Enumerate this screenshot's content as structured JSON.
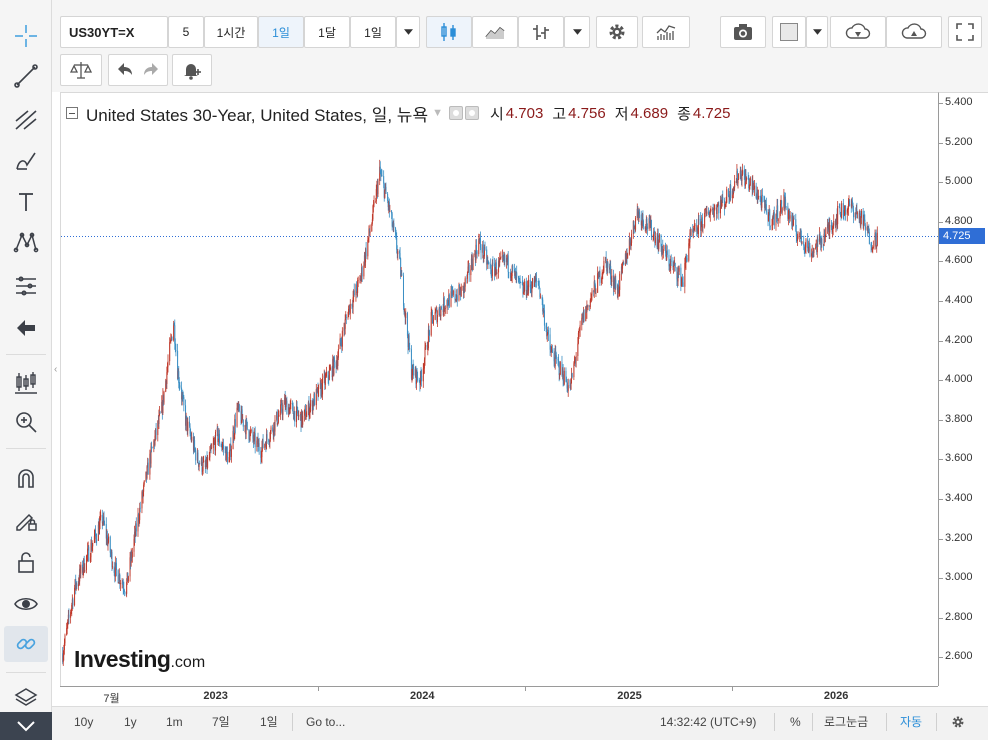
{
  "toolbar": {
    "symbol": "US30YT=X",
    "intervals": [
      "5",
      "1시간",
      "1일",
      "1달",
      "1일"
    ],
    "active_interval": "1일"
  },
  "legend": {
    "title": "United States 30-Year, United States, 일, 뉴욕",
    "open_label": "시",
    "open": "4.703",
    "high_label": "고",
    "high": "4.756",
    "low_label": "저",
    "low": "4.689",
    "close_label": "종",
    "close": "4.725"
  },
  "current_price": "4.725",
  "watermark": {
    "brand": "Investing",
    "suffix": ".com"
  },
  "bottom_bar": {
    "ranges": [
      "10y",
      "1y",
      "1m",
      "7일",
      "1일"
    ],
    "goto_label": "Go to...",
    "clock": "14:32:42 (UTC+9)",
    "percent_label": "%",
    "log_label": "로그눈금",
    "auto_label": "자동"
  },
  "chart_data": {
    "type": "candlestick",
    "xlabel": "",
    "ylabel": "",
    "ylim": [
      2.45,
      5.45
    ],
    "price_ticks": [
      "5.400",
      "5.200",
      "5.000",
      "4.800",
      "4.600",
      "4.400",
      "4.200",
      "4.000",
      "3.800",
      "3.600",
      "3.400",
      "3.200",
      "3.000",
      "2.800",
      "2.600"
    ],
    "time_ticks": [
      "7월",
      "2023",
      "2024",
      "2025",
      "2026"
    ],
    "x_range": [
      "2022-04-01",
      "2026-06-30"
    ],
    "up_color": "#c0392b",
    "down_color": "#3b8fc4",
    "last_price_line": 4.725,
    "series": [
      {
        "name": "US30YT=X",
        "x": [
          "2022-04-04",
          "2022-04-25",
          "2022-05-09",
          "2022-05-30",
          "2022-06-13",
          "2022-07-04",
          "2022-07-25",
          "2022-08-15",
          "2022-09-05",
          "2022-09-26",
          "2022-10-17",
          "2022-10-24",
          "2022-11-07",
          "2022-11-28",
          "2022-12-12",
          "2023-01-02",
          "2023-01-23",
          "2023-02-06",
          "2023-03-06",
          "2023-03-20",
          "2023-04-03",
          "2023-05-01",
          "2023-06-01",
          "2023-07-03",
          "2023-08-01",
          "2023-08-21",
          "2023-09-11",
          "2023-10-02",
          "2023-10-16",
          "2023-10-30",
          "2023-11-20",
          "2023-12-11",
          "2023-12-27",
          "2024-01-15",
          "2024-02-12",
          "2024-03-11",
          "2024-04-08",
          "2024-04-29",
          "2024-05-27",
          "2024-06-24",
          "2024-07-22",
          "2024-08-12",
          "2024-09-09",
          "2024-09-16",
          "2024-10-07",
          "2024-10-28",
          "2024-11-18",
          "2024-12-09",
          "2025-01-13",
          "2025-02-10",
          "2025-03-10",
          "2025-04-04",
          "2025-04-14",
          "2025-05-19",
          "2025-06-16",
          "2025-07-14",
          "2025-08-11",
          "2025-09-08",
          "2025-09-29",
          "2025-10-20",
          "2025-11-17",
          "2025-12-08",
          "2026-01-05",
          "2026-01-26",
          "2026-02-16",
          "2026-03-02",
          "2026-03-16"
        ],
        "close": [
          2.62,
          2.95,
          3.05,
          3.2,
          3.3,
          3.05,
          2.95,
          3.3,
          3.6,
          3.85,
          4.3,
          4.05,
          3.8,
          3.6,
          3.55,
          3.72,
          3.6,
          3.85,
          3.7,
          3.65,
          3.72,
          3.88,
          3.8,
          3.95,
          4.1,
          4.35,
          4.5,
          4.8,
          5.05,
          4.9,
          4.6,
          4.05,
          4.0,
          4.3,
          4.4,
          4.45,
          4.7,
          4.55,
          4.6,
          4.45,
          4.5,
          4.15,
          4.0,
          3.95,
          4.3,
          4.45,
          4.6,
          4.45,
          4.85,
          4.75,
          4.6,
          4.5,
          4.7,
          4.85,
          4.9,
          5.05,
          4.95,
          4.8,
          4.9,
          4.75,
          4.65,
          4.72,
          4.85,
          4.88,
          4.8,
          4.7,
          4.725
        ]
      }
    ]
  }
}
